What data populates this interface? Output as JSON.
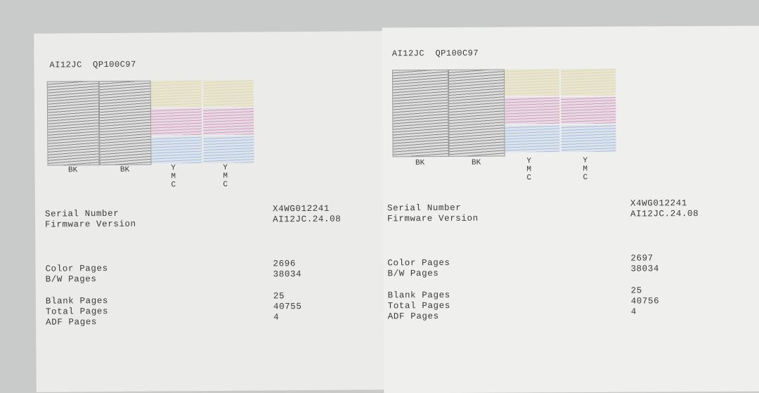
{
  "pages": [
    {
      "header": {
        "model": "AI12JC",
        "code": "QP100C97"
      },
      "pattern_labels": {
        "bk": "BK",
        "y": "Y",
        "m": "M",
        "c": "C"
      },
      "serial": {
        "label": "Serial Number",
        "value": "X4WG012241"
      },
      "firmware": {
        "label": "Firmware Version",
        "value": "AI12JC.24.08"
      },
      "color_pages": {
        "label": "Color Pages",
        "value": "2696"
      },
      "bw_pages": {
        "label": "B/W Pages",
        "value": "38034"
      },
      "blank_pages": {
        "label": "Blank Pages",
        "value": "25"
      },
      "total_pages": {
        "label": "Total Pages",
        "value": "40755"
      },
      "adf_pages": {
        "label": "ADF Pages",
        "value": "4"
      }
    },
    {
      "header": {
        "model": "AI12JC",
        "code": "QP100C97"
      },
      "pattern_labels": {
        "bk": "BK",
        "y": "Y",
        "m": "M",
        "c": "C"
      },
      "serial": {
        "label": "Serial Number",
        "value": "X4WG012241"
      },
      "firmware": {
        "label": "Firmware Version",
        "value": "AI12JC.24.08"
      },
      "color_pages": {
        "label": "Color Pages",
        "value": "2697"
      },
      "bw_pages": {
        "label": "B/W Pages",
        "value": "38034"
      },
      "blank_pages": {
        "label": "Blank Pages",
        "value": "25"
      },
      "total_pages": {
        "label": "Total Pages",
        "value": "40756"
      },
      "adf_pages": {
        "label": "ADF Pages",
        "value": "4"
      }
    }
  ],
  "ink_colors": {
    "black": "#888888",
    "yellow": "#e0d8b0",
    "magenta": "#d49ec0",
    "cyan": "#a8c0df"
  }
}
